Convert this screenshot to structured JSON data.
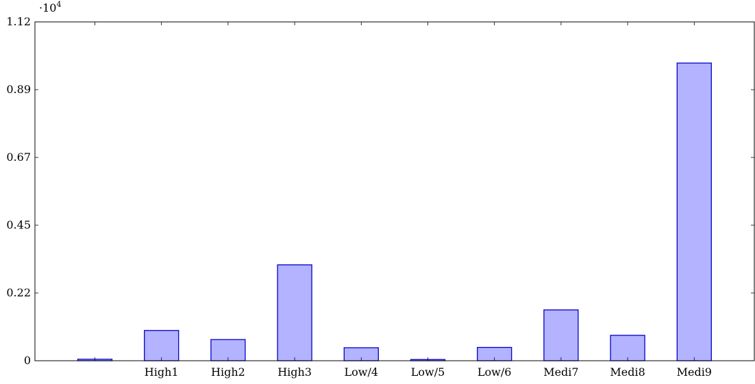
{
  "chart_data": {
    "type": "bar",
    "categories": [
      "",
      "High1",
      "High2",
      "High3",
      "Low/4",
      "Low/5",
      "Low/6",
      "Medi7",
      "Medi8",
      "Medi9"
    ],
    "values": [
      50,
      1000,
      700,
      3170,
      430,
      40,
      440,
      1680,
      840,
      9840
    ],
    "ylim": [
      0,
      11200
    ],
    "yticks": [
      0,
      2240,
      4480,
      6720,
      8960,
      11200
    ],
    "ytick_labels": [
      "0",
      "0.22",
      "0.45",
      "0.67",
      "0.89",
      "1.12"
    ],
    "y_multiplier_label": "·10",
    "y_multiplier_exponent": "4",
    "title": "",
    "xlabel": "",
    "ylabel": "",
    "grid": false,
    "legend": "none",
    "colors": {
      "bar_fill": "#b3b3ff",
      "bar_stroke": "#0000cc",
      "axis": "#000000"
    }
  }
}
